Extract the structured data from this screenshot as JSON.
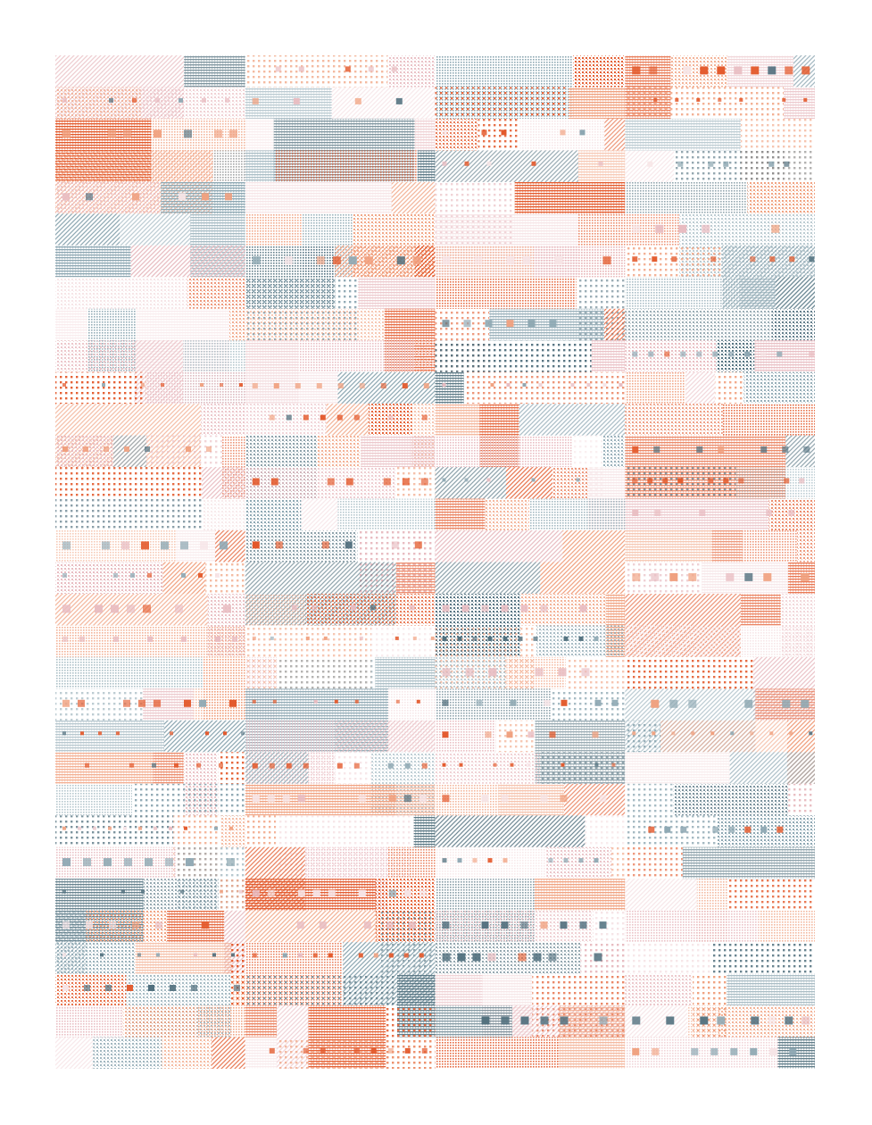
{
  "artwork": {
    "palette": {
      "background": "#ffffff",
      "orange": "#e3582a",
      "salmon": "#f0a07e",
      "pink": "#e8bcc1",
      "slate": "#4f6e7c",
      "blue_gray": "#8da7b2",
      "pale": "#f6e4e6"
    },
    "columns": 4,
    "rows_per_column": 32,
    "pattern_styles": [
      "dots",
      "diagonal-hatch",
      "horizontal-lines",
      "grid-dots",
      "squares"
    ]
  }
}
